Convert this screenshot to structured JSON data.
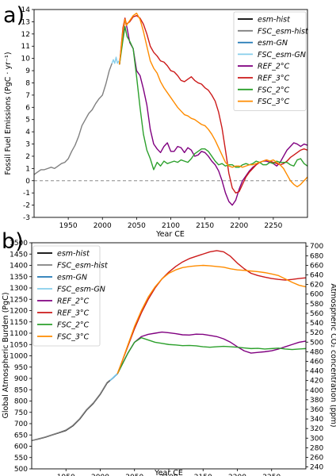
{
  "chart_data": [
    {
      "type": "line",
      "panel_label": "a)",
      "xlabel": "Year CE",
      "ylabel": "Fossil Fuel Emissions (PgC · yr⁻¹)",
      "xlim": [
        1900,
        2300
      ],
      "ylim": [
        -3,
        14
      ],
      "xticks": [
        1950,
        2000,
        2050,
        2100,
        2150,
        2200,
        2250
      ],
      "yticks": [
        -3,
        -2,
        -1,
        0,
        1,
        2,
        3,
        4,
        5,
        6,
        7,
        8,
        9,
        10,
        11,
        12,
        13,
        14
      ],
      "zero_line": "dashed",
      "legend_position": "top-right",
      "series": [
        {
          "name": "esm-hist",
          "color": "#000000",
          "x": [],
          "y": []
        },
        {
          "name": "FSC_esm-hist",
          "color": "#808080",
          "x": [
            1900,
            1905,
            1910,
            1915,
            1920,
            1925,
            1930,
            1935,
            1940,
            1945,
            1950,
            1955,
            1960,
            1965,
            1970,
            1975,
            1980,
            1985,
            1990,
            1995,
            2000,
            2005,
            2010,
            2014
          ],
          "y": [
            0.5,
            0.7,
            0.9,
            0.9,
            1.0,
            1.1,
            1.0,
            1.2,
            1.4,
            1.5,
            1.8,
            2.4,
            2.9,
            3.6,
            4.5,
            5.0,
            5.5,
            5.8,
            6.3,
            6.7,
            7.0,
            7.9,
            9.0,
            9.6
          ]
        },
        {
          "name": "esm-GN",
          "color": "#1f77b4",
          "x": [],
          "y": []
        },
        {
          "name": "FSC_esm-GN",
          "color": "#87ceeb",
          "x": [
            2014,
            2016,
            2018,
            2020,
            2022,
            2024
          ],
          "y": [
            9.6,
            9.9,
            9.6,
            10.1,
            9.6,
            9.8
          ]
        },
        {
          "name": "REF_2°C",
          "color": "#800080",
          "x": [
            2025,
            2030,
            2033,
            2036,
            2040,
            2045,
            2050,
            2055,
            2060,
            2065,
            2070,
            2075,
            2080,
            2085,
            2090,
            2095,
            2100,
            2105,
            2110,
            2115,
            2120,
            2125,
            2130,
            2135,
            2140,
            2145,
            2150,
            2155,
            2160,
            2165,
            2170,
            2175,
            2180,
            2185,
            2190,
            2195,
            2200,
            2205,
            2210,
            2215,
            2220,
            2225,
            2230,
            2235,
            2240,
            2245,
            2250,
            2255,
            2260,
            2265,
            2270,
            2275,
            2280,
            2285,
            2290,
            2295,
            2300
          ],
          "y": [
            9.5,
            12.0,
            13.2,
            12.5,
            11.3,
            10.8,
            9.0,
            8.6,
            7.5,
            6.2,
            4.2,
            3.0,
            2.6,
            2.3,
            2.8,
            3.1,
            2.4,
            2.4,
            2.8,
            2.7,
            2.3,
            2.7,
            2.5,
            2.0,
            2.1,
            2.4,
            2.3,
            2.0,
            1.6,
            1.3,
            0.8,
            0.0,
            -1.0,
            -1.7,
            -2.0,
            -1.6,
            -0.7,
            0.0,
            0.4,
            0.8,
            1.1,
            1.3,
            1.5,
            1.6,
            1.6,
            1.5,
            1.4,
            1.2,
            1.5,
            2.0,
            2.5,
            2.8,
            3.1,
            3.0,
            2.8,
            3.0,
            2.9
          ]
        },
        {
          "name": "REF_3°C",
          "color": "#cc1a1a",
          "x": [
            2025,
            2030,
            2033,
            2035,
            2040,
            2045,
            2050,
            2055,
            2060,
            2065,
            2070,
            2075,
            2080,
            2085,
            2090,
            2095,
            2100,
            2105,
            2110,
            2115,
            2120,
            2125,
            2130,
            2135,
            2140,
            2145,
            2150,
            2155,
            2160,
            2165,
            2170,
            2175,
            2180,
            2185,
            2190,
            2195,
            2200,
            2205,
            2210,
            2215,
            2220,
            2225,
            2230,
            2235,
            2240,
            2245,
            2250,
            2255,
            2260,
            2265,
            2270,
            2275,
            2280,
            2285,
            2290,
            2295,
            2300
          ],
          "y": [
            9.5,
            12.5,
            13.3,
            12.8,
            13.0,
            13.4,
            13.5,
            13.3,
            12.8,
            12.0,
            11.0,
            10.5,
            10.2,
            9.8,
            9.7,
            9.4,
            9.0,
            8.9,
            8.6,
            8.2,
            8.1,
            8.3,
            8.5,
            8.2,
            8.0,
            7.9,
            7.6,
            7.4,
            7.0,
            6.5,
            5.6,
            4.3,
            2.5,
            0.6,
            -0.6,
            -1.0,
            -0.9,
            -0.3,
            0.3,
            0.7,
            1.0,
            1.3,
            1.5,
            1.6,
            1.7,
            1.6,
            1.5,
            1.4,
            1.3,
            1.4,
            1.6,
            1.9,
            2.1,
            2.3,
            2.5,
            2.6,
            2.5
          ]
        },
        {
          "name": "FSC_2°C",
          "color": "#2ca02c",
          "x": [
            2025,
            2030,
            2033,
            2036,
            2040,
            2045,
            2050,
            2055,
            2060,
            2065,
            2070,
            2075,
            2080,
            2085,
            2090,
            2095,
            2100,
            2105,
            2110,
            2115,
            2120,
            2125,
            2130,
            2135,
            2140,
            2145,
            2150,
            2155,
            2160,
            2165,
            2170,
            2175,
            2180,
            2185,
            2190,
            2195,
            2200,
            2205,
            2210,
            2215,
            2220,
            2225,
            2230,
            2235,
            2240,
            2245,
            2250,
            2255,
            2260,
            2265,
            2270,
            2275,
            2280,
            2285,
            2290,
            2295,
            2300
          ],
          "y": [
            9.5,
            11.5,
            12.6,
            11.8,
            11.4,
            10.8,
            8.5,
            6.0,
            3.8,
            2.5,
            1.8,
            0.9,
            1.5,
            1.2,
            1.6,
            1.4,
            1.5,
            1.6,
            1.5,
            1.7,
            1.6,
            1.5,
            1.8,
            2.2,
            2.4,
            2.6,
            2.6,
            2.4,
            2.0,
            1.6,
            1.3,
            1.4,
            1.2,
            1.3,
            1.3,
            1.1,
            1.1,
            1.3,
            1.4,
            1.3,
            1.4,
            1.6,
            1.5,
            1.3,
            1.3,
            1.5,
            1.4,
            1.6,
            1.5,
            1.5,
            1.5,
            1.3,
            1.2,
            1.7,
            1.8,
            1.4,
            1.2
          ]
        },
        {
          "name": "FSC_3°C",
          "color": "#ff8c00",
          "x": [
            2025,
            2030,
            2033,
            2035,
            2040,
            2045,
            2050,
            2055,
            2060,
            2065,
            2070,
            2075,
            2080,
            2085,
            2090,
            2095,
            2100,
            2105,
            2110,
            2115,
            2120,
            2125,
            2130,
            2135,
            2140,
            2145,
            2150,
            2155,
            2160,
            2165,
            2170,
            2175,
            2180,
            2185,
            2190,
            2195,
            2200,
            2205,
            2210,
            2215,
            2220,
            2225,
            2230,
            2235,
            2240,
            2245,
            2250,
            2255,
            2260,
            2265,
            2270,
            2275,
            2280,
            2285,
            2290,
            2295,
            2300
          ],
          "y": [
            9.5,
            12.3,
            13.2,
            12.7,
            13.1,
            13.5,
            13.7,
            13.2,
            12.2,
            11.0,
            9.8,
            9.2,
            8.8,
            8.1,
            7.6,
            7.2,
            6.8,
            6.4,
            6.0,
            5.7,
            5.4,
            5.3,
            5.1,
            5.0,
            4.8,
            4.6,
            4.5,
            4.2,
            3.8,
            3.3,
            2.7,
            2.1,
            1.5,
            1.2,
            1.1,
            1.2,
            1.2,
            1.1,
            1.2,
            1.3,
            1.3,
            1.4,
            1.5,
            1.6,
            1.7,
            1.6,
            1.7,
            1.5,
            1.3,
            1.0,
            0.5,
            0.0,
            -0.3,
            -0.5,
            -0.3,
            0.0,
            0.3
          ]
        }
      ]
    },
    {
      "type": "line",
      "panel_label": "b)",
      "xlabel": "Year CE",
      "ylabel": "Global Atmospheric Burden (PgC)",
      "ylabel_right": "Atmospheric CO₂ concentration (ppm)",
      "xlim": [
        1900,
        2300
      ],
      "ylim": [
        500,
        1500
      ],
      "ylim_right": [
        236,
        707
      ],
      "xticks": [
        1950,
        2000,
        2050,
        2100,
        2150,
        2200,
        2250
      ],
      "yticks": [
        500,
        550,
        600,
        650,
        700,
        750,
        800,
        850,
        900,
        950,
        1000,
        1050,
        1100,
        1150,
        1200,
        1250,
        1300,
        1350,
        1400,
        1450,
        1500
      ],
      "yticks_right": [
        240,
        260,
        280,
        300,
        320,
        340,
        360,
        380,
        400,
        420,
        440,
        460,
        480,
        500,
        520,
        540,
        560,
        580,
        600,
        620,
        640,
        660,
        680,
        700
      ],
      "legend_position": "top-left",
      "series": [
        {
          "name": "esm-hist",
          "color": "#000000",
          "x": [
            1900,
            1910,
            1920,
            1930,
            1940,
            1950,
            1960,
            1970,
            1980,
            1990,
            2000,
            2010,
            2014
          ],
          "y": [
            625,
            632,
            640,
            650,
            660,
            670,
            690,
            720,
            760,
            790,
            830,
            880,
            890
          ]
        },
        {
          "name": "FSC_esm-hist",
          "color": "#808080",
          "x": [
            1900,
            1910,
            1920,
            1930,
            1940,
            1950,
            1960,
            1970,
            1980,
            1990,
            2000,
            2010,
            2014
          ],
          "y": [
            625,
            633,
            641,
            651,
            661,
            672,
            692,
            722,
            762,
            792,
            832,
            882,
            892
          ]
        },
        {
          "name": "esm-GN",
          "color": "#1f77b4",
          "x": [
            2014,
            2018,
            2022,
            2025
          ],
          "y": [
            890,
            900,
            912,
            920
          ]
        },
        {
          "name": "FSC_esm-GN",
          "color": "#87ceeb",
          "x": [
            2014,
            2018,
            2022,
            2025
          ],
          "y": [
            892,
            902,
            914,
            922
          ]
        },
        {
          "name": "REF_2°C",
          "color": "#800080",
          "x": [
            2025,
            2030,
            2040,
            2050,
            2060,
            2070,
            2080,
            2090,
            2100,
            2110,
            2120,
            2130,
            2140,
            2150,
            2160,
            2170,
            2180,
            2190,
            2200,
            2210,
            2220,
            2230,
            2240,
            2250,
            2260,
            2270,
            2280,
            2290,
            2300
          ],
          "y": [
            920,
            950,
            1010,
            1060,
            1085,
            1095,
            1100,
            1105,
            1102,
            1098,
            1093,
            1092,
            1096,
            1095,
            1090,
            1085,
            1075,
            1060,
            1040,
            1022,
            1012,
            1015,
            1018,
            1022,
            1030,
            1040,
            1050,
            1060,
            1065
          ]
        },
        {
          "name": "REF_3°C",
          "color": "#cc1a1a",
          "x": [
            2025,
            2030,
            2040,
            2050,
            2060,
            2070,
            2080,
            2090,
            2100,
            2110,
            2120,
            2130,
            2140,
            2150,
            2160,
            2170,
            2180,
            2190,
            2200,
            2210,
            2220,
            2230,
            2240,
            2250,
            2260,
            2270,
            2280,
            2290,
            2300
          ],
          "y": [
            920,
            960,
            1040,
            1120,
            1190,
            1250,
            1300,
            1340,
            1370,
            1395,
            1415,
            1430,
            1440,
            1450,
            1460,
            1465,
            1460,
            1440,
            1410,
            1385,
            1365,
            1355,
            1348,
            1342,
            1338,
            1335,
            1338,
            1342,
            1345
          ]
        },
        {
          "name": "FSC_2°C",
          "color": "#2ca02c",
          "x": [
            2025,
            2030,
            2040,
            2050,
            2060,
            2070,
            2080,
            2090,
            2100,
            2110,
            2120,
            2130,
            2140,
            2150,
            2160,
            2170,
            2180,
            2190,
            2200,
            2210,
            2220,
            2230,
            2240,
            2250,
            2260,
            2270,
            2280,
            2290,
            2300
          ],
          "y": [
            920,
            950,
            1010,
            1060,
            1080,
            1070,
            1060,
            1055,
            1050,
            1048,
            1045,
            1046,
            1044,
            1040,
            1038,
            1040,
            1042,
            1040,
            1038,
            1035,
            1032,
            1033,
            1030,
            1032,
            1034,
            1030,
            1028,
            1030,
            1032
          ]
        },
        {
          "name": "FSC_3°C",
          "color": "#ff8c00",
          "x": [
            2025,
            2030,
            2040,
            2050,
            2060,
            2070,
            2080,
            2090,
            2100,
            2110,
            2120,
            2130,
            2140,
            2150,
            2160,
            2170,
            2180,
            2190,
            2200,
            2210,
            2220,
            2230,
            2240,
            2250,
            2260,
            2270,
            2280,
            2290,
            2300
          ],
          "y": [
            920,
            960,
            1045,
            1130,
            1200,
            1260,
            1305,
            1340,
            1365,
            1380,
            1390,
            1395,
            1398,
            1400,
            1398,
            1395,
            1392,
            1385,
            1380,
            1378,
            1375,
            1372,
            1368,
            1362,
            1355,
            1340,
            1325,
            1312,
            1305
          ]
        }
      ]
    }
  ]
}
